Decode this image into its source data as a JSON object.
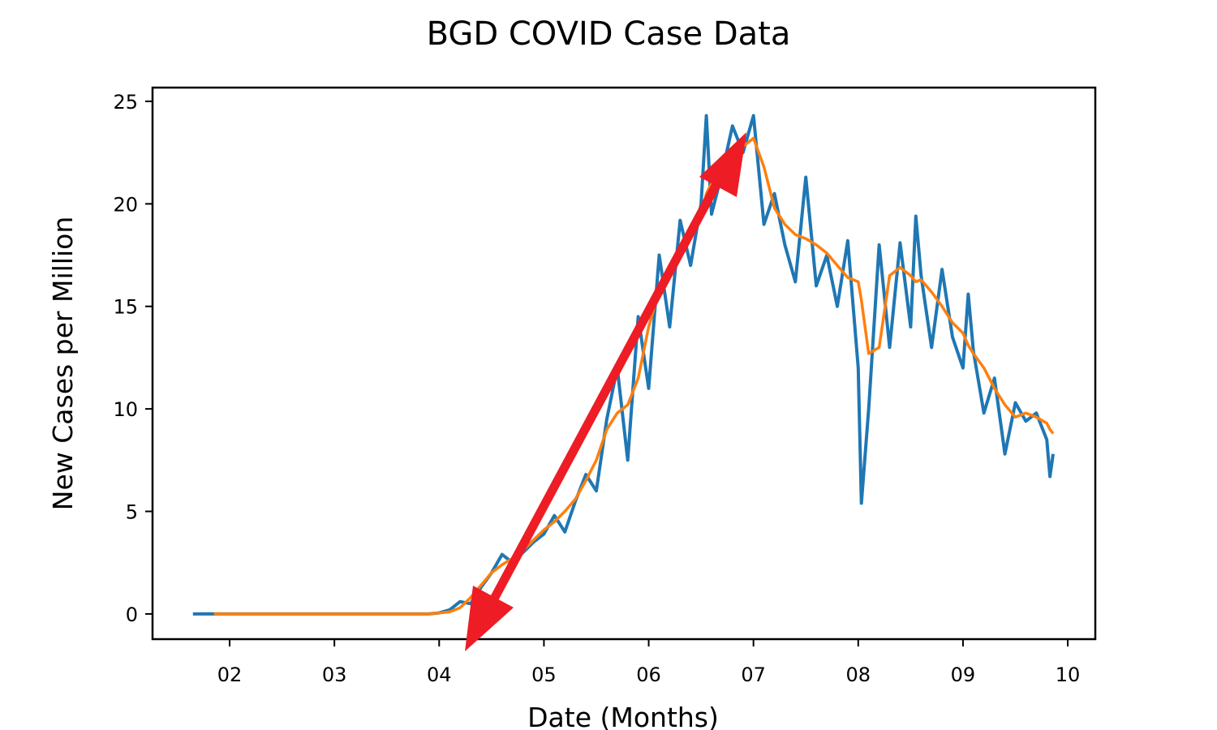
{
  "chart_data": {
    "type": "line",
    "title": "BGD COVID Case Data",
    "xlabel": "Date (Months)",
    "ylabel": "New Cases per Million",
    "x": [
      1.65,
      1.85,
      2.5,
      3.0,
      3.5,
      3.9,
      4.0,
      4.1,
      4.2,
      4.3,
      4.4,
      4.5,
      4.6,
      4.7,
      4.8,
      4.9,
      5.0,
      5.1,
      5.2,
      5.3,
      5.4,
      5.5,
      5.6,
      5.7,
      5.8,
      5.9,
      6.0,
      6.1,
      6.2,
      6.3,
      6.4,
      6.5,
      6.55,
      6.6,
      6.7,
      6.8,
      6.9,
      7.0,
      7.1,
      7.2,
      7.3,
      7.4,
      7.5,
      7.6,
      7.7,
      7.8,
      7.9,
      8.0,
      8.03,
      8.1,
      8.2,
      8.3,
      8.4,
      8.5,
      8.55,
      8.6,
      8.7,
      8.8,
      8.9,
      9.0,
      9.05,
      9.1,
      9.2,
      9.3,
      9.4,
      9.5,
      9.6,
      9.7,
      9.8,
      9.83,
      9.86
    ],
    "series": [
      {
        "color": "#1f77b4",
        "values": [
          0,
          0,
          0,
          0,
          0,
          0,
          0.05,
          0.2,
          0.6,
          0.5,
          1.3,
          2.0,
          2.9,
          2.5,
          3.0,
          3.5,
          3.9,
          4.8,
          4.0,
          5.5,
          6.8,
          6.0,
          9.5,
          12.0,
          7.5,
          14.5,
          11.0,
          17.5,
          14.0,
          19.2,
          17.0,
          20.0,
          24.3,
          19.5,
          21.5,
          23.8,
          22.5,
          24.3,
          19.0,
          20.5,
          18.0,
          16.2,
          21.3,
          16.0,
          17.5,
          15.0,
          18.2,
          12.0,
          5.4,
          10.0,
          18.0,
          13.0,
          18.1,
          14.0,
          19.4,
          16.5,
          13.0,
          16.8,
          13.5,
          12.0,
          15.6,
          12.8,
          9.8,
          11.5,
          7.8,
          10.3,
          9.4,
          9.8,
          8.5,
          6.7,
          7.8
        ]
      },
      {
        "color": "#ff7f0e",
        "values": [
          null,
          0,
          0,
          0,
          0,
          0,
          0.05,
          0.1,
          0.3,
          0.8,
          1.4,
          2.0,
          2.4,
          2.7,
          3.1,
          3.6,
          4.1,
          4.5,
          5.0,
          5.6,
          6.5,
          7.5,
          9.0,
          9.8,
          10.2,
          11.5,
          14.0,
          15.8,
          16.9,
          17.8,
          18.5,
          19.4,
          20.5,
          21.0,
          21.4,
          22.2,
          22.8,
          23.2,
          21.8,
          19.8,
          19.0,
          18.5,
          18.3,
          18.0,
          17.6,
          17.0,
          16.4,
          16.2,
          15.3,
          12.7,
          13.0,
          16.5,
          16.9,
          16.5,
          16.2,
          16.3,
          15.7,
          15.0,
          14.2,
          13.7,
          13.1,
          12.7,
          12.0,
          11.0,
          10.2,
          9.6,
          9.8,
          9.6,
          9.3,
          9.0,
          8.8
        ]
      }
    ],
    "xlim": [
      1.264,
      10.263
    ],
    "xticks": [
      {
        "value": 2,
        "label": "02"
      },
      {
        "value": 3,
        "label": "03"
      },
      {
        "value": 4,
        "label": "04"
      },
      {
        "value": 5,
        "label": "05"
      },
      {
        "value": 6,
        "label": "06"
      },
      {
        "value": 7,
        "label": "07"
      },
      {
        "value": 8,
        "label": "08"
      },
      {
        "value": 9,
        "label": "09"
      },
      {
        "value": 10,
        "label": "10"
      }
    ],
    "ylim": [
      -1.23,
      25.67
    ],
    "yticks": [
      0,
      5,
      10,
      15,
      20,
      25
    ]
  }
}
